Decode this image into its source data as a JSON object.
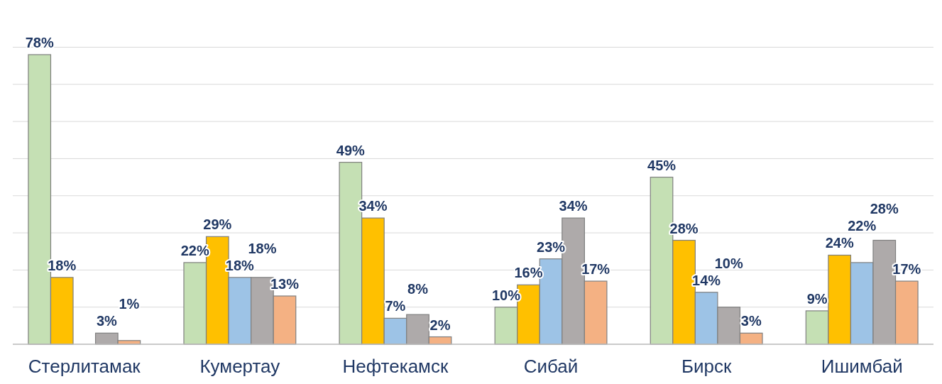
{
  "chart_data": {
    "type": "bar",
    "categories": [
      "Стерлитамак",
      "Кумертау",
      "Нефтекамск",
      "Сибай",
      "Бирск",
      "Ишимбай"
    ],
    "series": [
      {
        "color": "#c5e0b4",
        "values": [
          78,
          22,
          49,
          10,
          45,
          9
        ],
        "value_labels": [
          "78%",
          "22%",
          "49%",
          "10%",
          "45%",
          "9%"
        ]
      },
      {
        "color": "#ffc000",
        "values": [
          18,
          29,
          34,
          16,
          28,
          24
        ],
        "value_labels": [
          "18%",
          "29%",
          "34%",
          "16%",
          "28%",
          "24%"
        ]
      },
      {
        "color": "#9dc3e6",
        "values": [
          null,
          18,
          7,
          23,
          14,
          22
        ],
        "value_labels": [
          null,
          "18%",
          "7%",
          "23%",
          "14%",
          "22%"
        ]
      },
      {
        "color": "#aeaaaa",
        "values": [
          3,
          18,
          8,
          34,
          10,
          28
        ],
        "value_labels": [
          "3%",
          "18%",
          "8%",
          "34%",
          "10%",
          "28%"
        ]
      },
      {
        "color": "#f4b183",
        "values": [
          1,
          13,
          2,
          17,
          3,
          17
        ],
        "value_labels": [
          "1%",
          "13%",
          "2%",
          "17%",
          "3%",
          "17%"
        ]
      }
    ],
    "tick_labels": "x",
    "grid": "y"
  }
}
